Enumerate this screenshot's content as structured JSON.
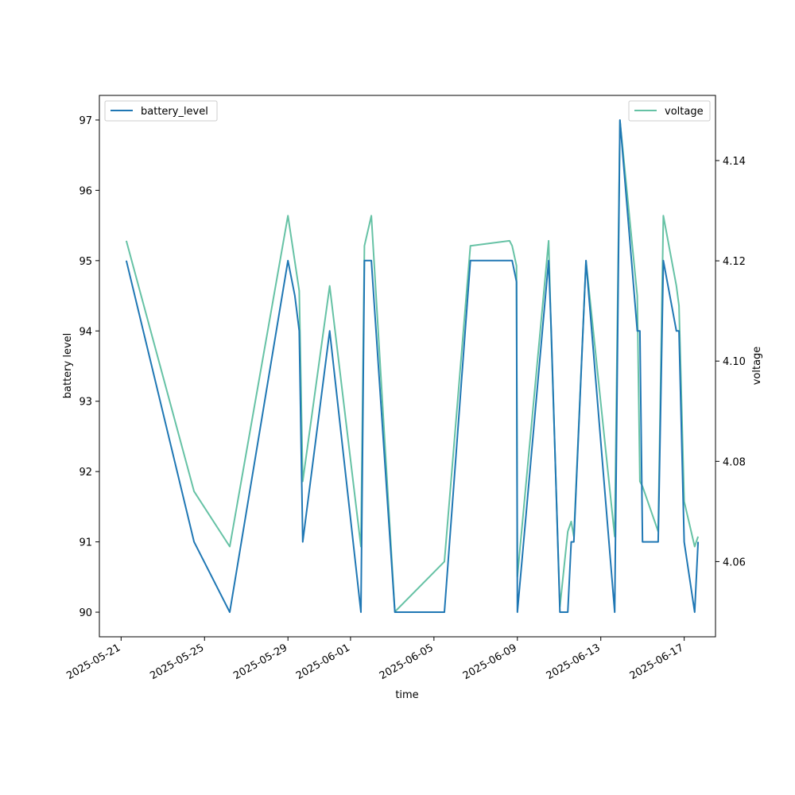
{
  "chart_data": {
    "type": "line",
    "xlabel": "time",
    "ylabel": "battery level",
    "y2label": "voltage",
    "xlim": [
      "2025-05-19T23:00",
      "2025-06-18T12:00"
    ],
    "ylim": [
      89.65,
      97.35
    ],
    "y2lim": [
      4.045,
      4.153
    ],
    "x_ticks": [
      "2025-05-21",
      "2025-05-25",
      "2025-05-29",
      "2025-06-01",
      "2025-06-05",
      "2025-06-09",
      "2025-06-13",
      "2025-06-17"
    ],
    "y_ticks": [
      90,
      91,
      92,
      93,
      94,
      95,
      96,
      97
    ],
    "y2_ticks": [
      "4.06",
      "4.08",
      "4.10",
      "4.12",
      "4.14"
    ],
    "legend": {
      "left": "top-left",
      "right": "top-right"
    },
    "grid": false,
    "colors": {
      "battery_level": "#1f77b4",
      "voltage": "#66c2a5"
    },
    "series": [
      {
        "name": "battery_level",
        "axis": "left",
        "color": "#1f77b4",
        "x": [
          "2025-05-21T06:00",
          "2025-05-24T12:00",
          "2025-05-26T05:00",
          "2025-05-29T00:00",
          "2025-05-29T08:00",
          "2025-05-29T13:00",
          "2025-05-29T17:00",
          "2025-05-31T00:00",
          "2025-06-01T12:00",
          "2025-06-01T16:00",
          "2025-06-02T00:00",
          "2025-06-03T03:00",
          "2025-06-05T12:00",
          "2025-06-06T18:00",
          "2025-06-08T18:00",
          "2025-06-08T23:00",
          "2025-06-09T00:00",
          "2025-06-10T12:00",
          "2025-06-10T15:00",
          "2025-06-11T01:00",
          "2025-06-11T10:00",
          "2025-06-11T14:00",
          "2025-06-11T17:00",
          "2025-06-12T07:00",
          "2025-06-13T16:00",
          "2025-06-13T22:00",
          "2025-06-14T18:00",
          "2025-06-14T21:00",
          "2025-06-15T00:00",
          "2025-06-15T18:00",
          "2025-06-16T00:00",
          "2025-06-16T15:00",
          "2025-06-16T18:00",
          "2025-06-17T00:00",
          "2025-06-17T12:00",
          "2025-06-17T16:00"
        ],
        "values": [
          95,
          91,
          90,
          95,
          94.5,
          94,
          91,
          94,
          90,
          95,
          95,
          90,
          90,
          95,
          95,
          94.7,
          90,
          95,
          94,
          90,
          90,
          91,
          91,
          95,
          90,
          97,
          94,
          94,
          91,
          91,
          95,
          94,
          94,
          91,
          90,
          91
        ]
      },
      {
        "name": "voltage",
        "axis": "right",
        "color": "#66c2a5",
        "x": [
          "2025-05-21T06:00",
          "2025-05-24T12:00",
          "2025-05-26T05:00",
          "2025-05-29T00:00",
          "2025-05-29T13:00",
          "2025-05-29T17:00",
          "2025-05-31T00:00",
          "2025-06-01T12:00",
          "2025-06-01T16:00",
          "2025-06-02T00:00",
          "2025-06-03T03:00",
          "2025-06-05T12:00",
          "2025-06-06T18:00",
          "2025-06-08T15:00",
          "2025-06-08T18:00",
          "2025-06-08T23:00",
          "2025-06-09T00:00",
          "2025-06-10T12:00",
          "2025-06-10T15:00",
          "2025-06-11T01:00",
          "2025-06-11T10:00",
          "2025-06-11T14:00",
          "2025-06-11T17:00",
          "2025-06-12T07:00",
          "2025-06-13T16:00",
          "2025-06-13T22:00",
          "2025-06-14T18:00",
          "2025-06-14T21:00",
          "2025-06-15T00:00",
          "2025-06-15T18:00",
          "2025-06-16T00:00",
          "2025-06-16T15:00",
          "2025-06-16T18:00",
          "2025-06-17T00:00",
          "2025-06-17T12:00",
          "2025-06-17T16:00"
        ],
        "values": [
          4.124,
          4.074,
          4.063,
          4.129,
          4.114,
          4.076,
          4.115,
          4.063,
          4.123,
          4.129,
          4.05,
          4.06,
          4.123,
          4.124,
          4.123,
          4.119,
          4.057,
          4.124,
          4.105,
          4.051,
          4.066,
          4.068,
          4.065,
          4.12,
          4.065,
          4.148,
          4.113,
          4.076,
          4.075,
          4.066,
          4.129,
          4.115,
          4.111,
          4.072,
          4.063,
          4.065
        ]
      }
    ]
  }
}
